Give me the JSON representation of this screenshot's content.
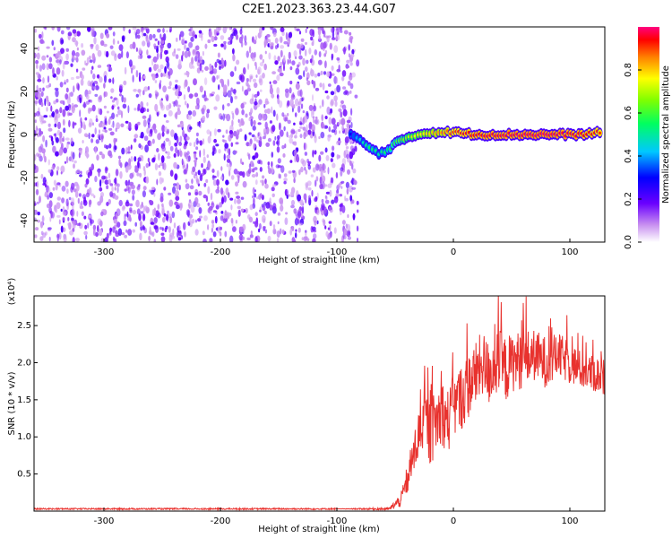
{
  "title": "C2E1.2023.363.23.44.G07",
  "chart_data": [
    {
      "type": "heatmap",
      "xlabel": "Height of straight line (km)",
      "ylabel": "Frequency (Hz)",
      "xlim": [
        -360,
        130
      ],
      "ylim": [
        -50,
        50
      ],
      "xticks": [
        -300,
        -200,
        -100,
        0,
        100
      ],
      "yticks": [
        -40,
        -20,
        0,
        20,
        40
      ],
      "noise_region": {
        "x": [
          -360,
          -82
        ],
        "y": [
          -50,
          50
        ]
      },
      "signal_track": [
        {
          "x": -88,
          "y": 0,
          "z": 0.3
        },
        {
          "x": -80,
          "y": -3,
          "z": 0.45
        },
        {
          "x": -72,
          "y": -6,
          "z": 0.55
        },
        {
          "x": -64,
          "y": -9,
          "z": 0.5
        },
        {
          "x": -56,
          "y": -7,
          "z": 0.55
        },
        {
          "x": -50,
          "y": -4,
          "z": 0.6
        },
        {
          "x": -44,
          "y": -3,
          "z": 0.65
        },
        {
          "x": -38,
          "y": -1,
          "z": 0.7
        },
        {
          "x": -30,
          "y": 0,
          "z": 0.75
        },
        {
          "x": -20,
          "y": 1,
          "z": 0.8
        },
        {
          "x": -10,
          "y": 1,
          "z": 0.85
        },
        {
          "x": 0,
          "y": 1,
          "z": 0.9
        },
        {
          "x": 20,
          "y": 0,
          "z": 0.95
        },
        {
          "x": 50,
          "y": 0,
          "z": 0.97
        },
        {
          "x": 80,
          "y": 0,
          "z": 0.98
        },
        {
          "x": 110,
          "y": 0,
          "z": 0.95
        },
        {
          "x": 128,
          "y": 1,
          "z": 0.9
        }
      ],
      "colorbar": {
        "label": "Normalized spectral amplitude",
        "range": [
          0,
          1
        ],
        "ticks": [
          "0.0",
          "0.2",
          "0.4",
          "0.6",
          "0.8"
        ]
      }
    },
    {
      "type": "line",
      "xlabel": "Height of straight line (km)",
      "ylabel": "SNR (10 * v/v)",
      "scale_label": "(x10⁴)",
      "xlim": [
        -360,
        130
      ],
      "ylim": [
        0,
        2.9
      ],
      "xticks": [
        -300,
        -200,
        -100,
        0,
        100
      ],
      "yticks": [
        0.5,
        1.0,
        1.5,
        2.0,
        2.5
      ],
      "series": [
        {
          "color": "#e8322e",
          "x": [
            -360,
            -300,
            -200,
            -100,
            -55,
            -45,
            -40,
            -35,
            -30,
            -25,
            -20,
            -15,
            -10,
            -5,
            0,
            5,
            10,
            15,
            20,
            25,
            30,
            35,
            40,
            45,
            50,
            60,
            70,
            80,
            90,
            100,
            110,
            120,
            130
          ],
          "y": [
            0.03,
            0.03,
            0.03,
            0.03,
            0.03,
            0.15,
            0.4,
            0.7,
            1.0,
            1.25,
            1.05,
            1.2,
            1.35,
            1.2,
            1.4,
            1.5,
            1.6,
            1.75,
            1.85,
            2.0,
            1.85,
            1.95,
            2.0,
            1.9,
            2.0,
            2.05,
            2.1,
            2.0,
            2.1,
            2.0,
            1.9,
            1.85,
            1.8
          ],
          "noise_amplitude": [
            0.0,
            0.0,
            0.0,
            0.0,
            0.02,
            0.1,
            0.2,
            0.3,
            0.35,
            0.4,
            0.45,
            0.45,
            0.45,
            0.45,
            0.45,
            0.45,
            0.45,
            0.45,
            0.45,
            0.45,
            0.45,
            0.45,
            0.45,
            0.45,
            0.4,
            0.4,
            0.35,
            0.35,
            0.3,
            0.3,
            0.25,
            0.25,
            0.25
          ]
        }
      ]
    }
  ]
}
